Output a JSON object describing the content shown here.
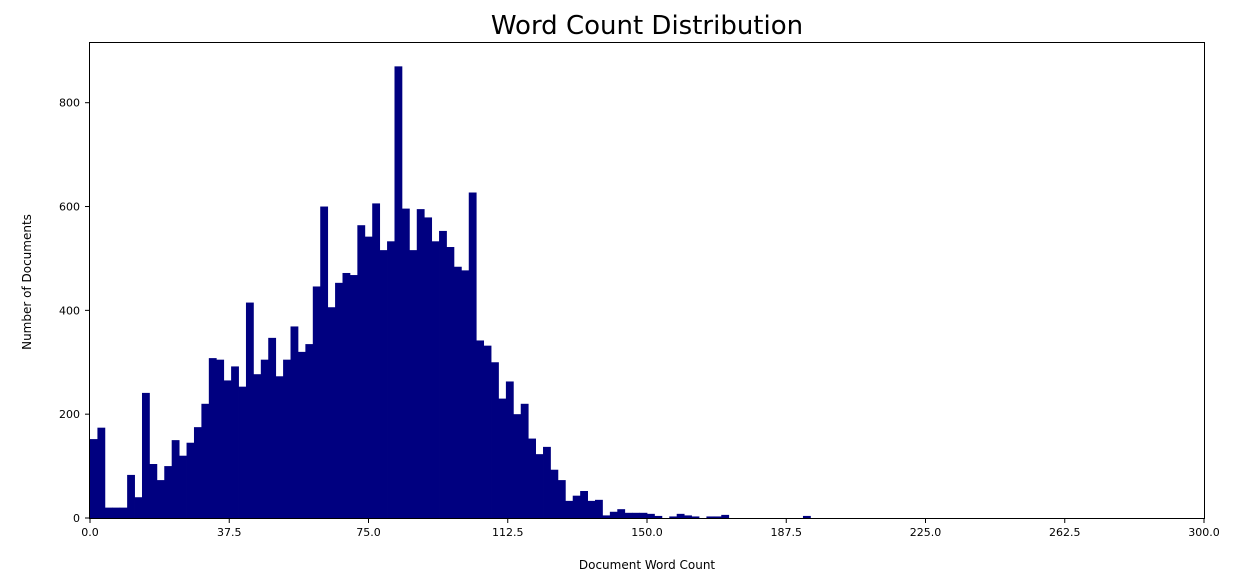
{
  "chart_data": {
    "type": "bar",
    "title": "Word Count Distribution",
    "xlabel": "Document Word Count",
    "ylabel": "Number of Documents",
    "xlim": [
      0,
      300
    ],
    "ylim": [
      0,
      915
    ],
    "xticks": [
      "0.0",
      "37.5",
      "75.0",
      "112.5",
      "150.0",
      "187.5",
      "225.0",
      "262.5",
      "300.0"
    ],
    "yticks": [
      0,
      200,
      400,
      600,
      800
    ],
    "grid": false,
    "bar_color": "#000080",
    "bin_width": 2,
    "bins_start": [
      0,
      2,
      4,
      6,
      8,
      10,
      12,
      14,
      16,
      18,
      20,
      22,
      24,
      26,
      28,
      30,
      32,
      34,
      36,
      38,
      40,
      42,
      44,
      46,
      48,
      50,
      52,
      54,
      56,
      58,
      60,
      62,
      64,
      66,
      68,
      70,
      72,
      74,
      76,
      78,
      80,
      82,
      84,
      86,
      88,
      90,
      92,
      94,
      96,
      98,
      100,
      102,
      104,
      106,
      108,
      110,
      112,
      114,
      116,
      118,
      120,
      122,
      124,
      126,
      128,
      130,
      132,
      134,
      136,
      138,
      140,
      142,
      144,
      146,
      148,
      150,
      152,
      154,
      156,
      158,
      160,
      162,
      164,
      166,
      168,
      170,
      172,
      174,
      176,
      178,
      180,
      182,
      184,
      186,
      188,
      190,
      192,
      194,
      196,
      198
    ],
    "values": [
      152,
      174,
      20,
      20,
      20,
      83,
      40,
      241,
      104,
      73,
      100,
      150,
      120,
      145,
      175,
      220,
      308,
      305,
      265,
      292,
      253,
      415,
      277,
      305,
      347,
      273,
      305,
      369,
      320,
      335,
      446,
      600,
      406,
      453,
      472,
      468,
      564,
      542,
      606,
      516,
      533,
      870,
      596,
      516,
      595,
      579,
      533,
      553,
      522,
      484,
      477,
      627,
      342,
      332,
      300,
      230,
      263,
      200,
      220,
      153,
      123,
      137,
      93,
      73,
      33,
      43,
      52,
      33,
      35,
      5,
      12,
      17,
      10,
      10,
      10,
      8,
      4,
      0,
      3,
      8,
      5,
      3,
      0,
      3,
      3,
      6,
      0,
      0,
      0,
      0,
      0,
      0,
      0,
      0,
      0,
      0,
      4,
      0,
      0,
      0
    ]
  }
}
